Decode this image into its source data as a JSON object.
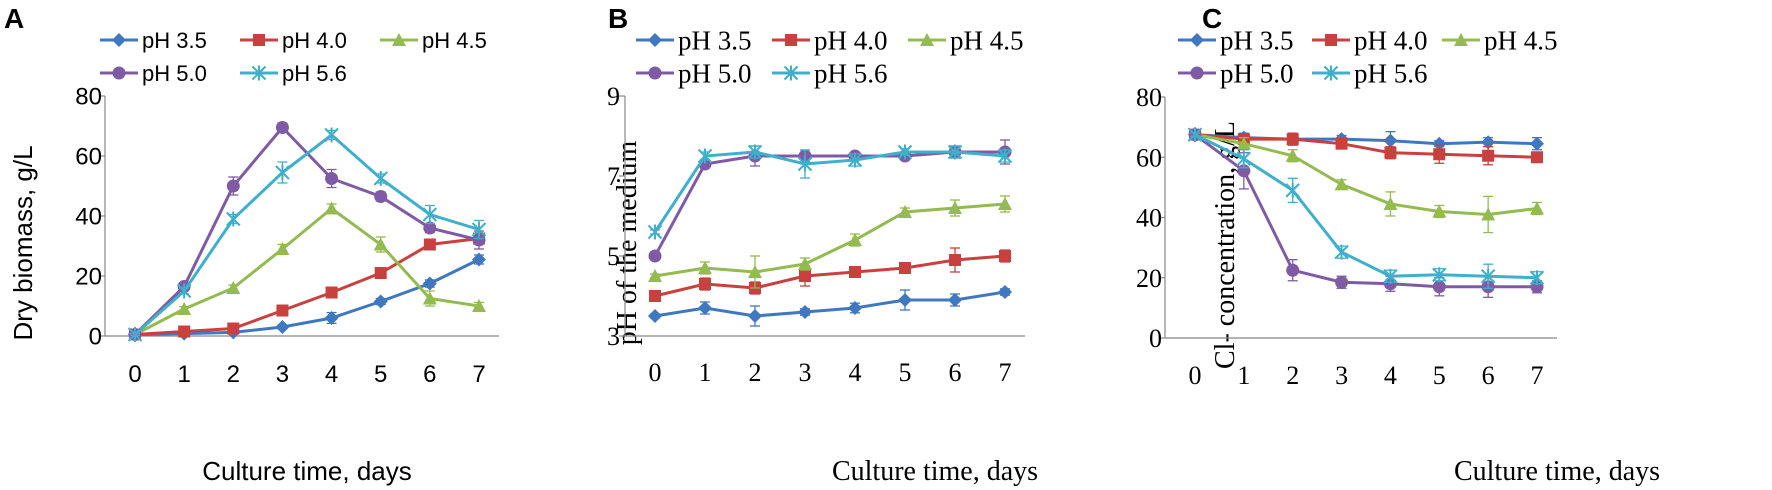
{
  "colors": {
    "pH 3.5": "#3f78c1",
    "pH 4.0": "#c8413e",
    "pH 4.5": "#93bb4f",
    "pH 5.0": "#7f5ba5",
    "pH 5.6": "#3fb0cc"
  },
  "chart_data": [
    {
      "type": "line",
      "panel": "A",
      "xlabel": "Culture time, days",
      "ylabel": "Dry biomass, g/L",
      "x": [
        0,
        1,
        2,
        3,
        4,
        5,
        6,
        7
      ],
      "xticks": [
        "0",
        "1",
        "2",
        "3",
        "4",
        "5",
        "6",
        "7"
      ],
      "ylim": [
        0,
        80
      ],
      "yticks": [
        "0",
        "20",
        "40",
        "60",
        "80"
      ],
      "series": [
        {
          "name": "pH 3.5",
          "marker": "diamond",
          "values": [
            0.5,
            0.8,
            1.2,
            3,
            6,
            11.5,
            17.5,
            25.5
          ],
          "errors": [
            0.3,
            0.3,
            0.4,
            0.6,
            1.8,
            1,
            1.2,
            1.5
          ]
        },
        {
          "name": "pH 4.0",
          "marker": "square",
          "values": [
            0.5,
            1.5,
            2.5,
            8.5,
            14.5,
            21,
            30.5,
            32.5
          ],
          "errors": [
            0.3,
            0.3,
            0.4,
            1,
            1.2,
            1,
            1.5,
            1.5
          ]
        },
        {
          "name": "pH 4.5",
          "marker": "triangle",
          "values": [
            0.5,
            9,
            16,
            29,
            42.5,
            30.5,
            12.5,
            10
          ],
          "errors": [
            0.3,
            0.8,
            1,
            1.5,
            1.5,
            2.5,
            2.5,
            1.2
          ]
        },
        {
          "name": "pH 5.0",
          "marker": "circle",
          "values": [
            0.5,
            16.5,
            50,
            69.5,
            52.5,
            46.5,
            36,
            32
          ],
          "errors": [
            0.3,
            1.2,
            3,
            1.5,
            3,
            1.5,
            1.5,
            3
          ]
        },
        {
          "name": "pH 5.6",
          "marker": "star",
          "values": [
            0.5,
            15,
            39,
            54.5,
            67,
            52.5,
            40.5,
            35.5
          ],
          "errors": [
            0.3,
            1,
            1.5,
            3.5,
            1.5,
            1.5,
            3,
            3
          ]
        }
      ]
    },
    {
      "type": "line",
      "panel": "B",
      "xlabel": "Culture time, days",
      "ylabel": "pH of the medium",
      "x": [
        0,
        1,
        2,
        3,
        4,
        5,
        6,
        7
      ],
      "xticks": [
        "0",
        "1",
        "2",
        "3",
        "4",
        "5",
        "6",
        "7"
      ],
      "ylim": [
        3,
        9
      ],
      "yticks": [
        "3",
        "5",
        "7",
        "9"
      ],
      "series": [
        {
          "name": "pH 3.5",
          "marker": "diamond",
          "values": [
            3.5,
            3.7,
            3.5,
            3.6,
            3.7,
            3.9,
            3.9,
            4.1
          ],
          "errors": [
            0.05,
            0.15,
            0.25,
            0.08,
            0.12,
            0.25,
            0.15,
            0.08
          ]
        },
        {
          "name": "pH 4.0",
          "marker": "square",
          "values": [
            4.0,
            4.3,
            4.2,
            4.5,
            4.6,
            4.7,
            4.9,
            5.0
          ],
          "errors": [
            0.05,
            0.15,
            0.15,
            0.25,
            0.12,
            0.1,
            0.3,
            0.15
          ]
        },
        {
          "name": "pH 4.5",
          "marker": "triangle",
          "values": [
            4.5,
            4.7,
            4.6,
            4.8,
            5.4,
            6.1,
            6.2,
            6.3
          ],
          "errors": [
            0.05,
            0.15,
            0.4,
            0.15,
            0.15,
            0.1,
            0.2,
            0.2
          ]
        },
        {
          "name": "pH 5.0",
          "marker": "circle",
          "values": [
            5.0,
            7.3,
            7.5,
            7.5,
            7.5,
            7.5,
            7.6,
            7.6
          ],
          "errors": [
            0.05,
            0.1,
            0.25,
            0.15,
            0.08,
            0.08,
            0.15,
            0.3
          ]
        },
        {
          "name": "pH 5.6",
          "marker": "star",
          "values": [
            5.6,
            7.5,
            7.6,
            7.3,
            7.4,
            7.6,
            7.6,
            7.5
          ],
          "errors": [
            0.05,
            0.1,
            0.15,
            0.35,
            0.15,
            0.08,
            0.15,
            0.15
          ]
        }
      ]
    },
    {
      "type": "line",
      "panel": "C",
      "xlabel": "Culture time, days",
      "ylabel": "Cl- concentration, g/L",
      "x": [
        0,
        1,
        2,
        3,
        4,
        5,
        6,
        7
      ],
      "xticks": [
        "0",
        "1",
        "2",
        "3",
        "4",
        "5",
        "6",
        "7"
      ],
      "ylim": [
        0,
        80
      ],
      "yticks": [
        "0",
        "20",
        "40",
        "60",
        "80"
      ],
      "series": [
        {
          "name": "pH 3.5",
          "marker": "diamond",
          "values": [
            67.5,
            66.5,
            66,
            66,
            65.5,
            64.5,
            65,
            64.5
          ],
          "errors": [
            0.5,
            1.5,
            1.5,
            1.2,
            3,
            1,
            1.5,
            2
          ]
        },
        {
          "name": "pH 4.0",
          "marker": "square",
          "values": [
            67.5,
            66,
            66,
            64.5,
            61.5,
            61,
            60.5,
            60
          ],
          "errors": [
            0.5,
            1.5,
            2,
            1.5,
            2,
            3,
            3,
            1.2
          ]
        },
        {
          "name": "pH 4.5",
          "marker": "triangle",
          "values": [
            67.5,
            64.5,
            60.5,
            51,
            44.5,
            42,
            41,
            43
          ],
          "errors": [
            0.5,
            2,
            2,
            1.5,
            4,
            2,
            6,
            2
          ]
        },
        {
          "name": "pH 5.0",
          "marker": "circle",
          "values": [
            67.5,
            55.5,
            22.5,
            18.5,
            18,
            17,
            17,
            17
          ],
          "errors": [
            0.5,
            6,
            3.5,
            2,
            2.5,
            3,
            3.5,
            2
          ]
        },
        {
          "name": "pH 5.6",
          "marker": "star",
          "values": [
            67.5,
            59.5,
            49,
            28.5,
            20.5,
            21,
            20.5,
            20
          ],
          "errors": [
            0.5,
            3,
            4,
            2,
            2,
            2,
            4,
            2
          ]
        }
      ]
    }
  ]
}
